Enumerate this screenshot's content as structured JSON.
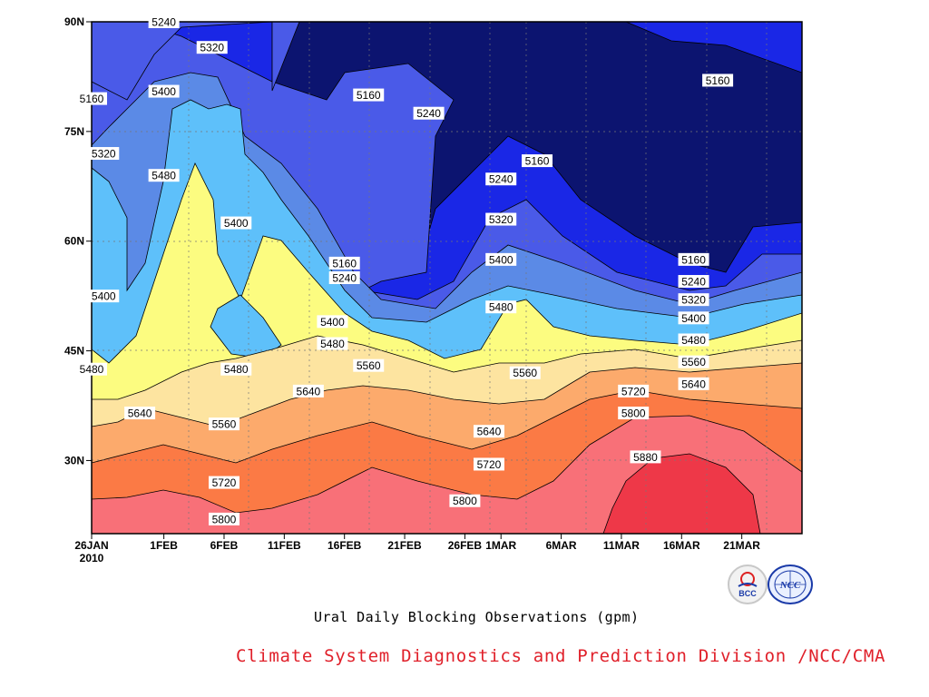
{
  "chart_data": {
    "type": "heatmap",
    "title": "Ural Daily Blocking Observations (gpm)",
    "xlabel": "",
    "ylabel": "",
    "x_ticks": [
      "26JAN",
      "1FEB",
      "6FEB",
      "11FEB",
      "16FEB",
      "21FEB",
      "26FEB",
      "1MAR",
      "6MAR",
      "11MAR",
      "16MAR",
      "21MAR"
    ],
    "x_year": "2010",
    "x_range": [
      "2010-01-26",
      "2010-03-26"
    ],
    "y_ticks": [
      "30N",
      "45N",
      "60N",
      "75N",
      "90N"
    ],
    "y_range": [
      20,
      90
    ],
    "grid": true,
    "contour_levels": [
      5160,
      5240,
      5320,
      5400,
      5480,
      5560,
      5640,
      5720,
      5800,
      5880
    ],
    "band_colors": [
      "#0c1470",
      "#1a27e6",
      "#4a5ae8",
      "#5b8ae6",
      "#5ec0fa",
      "#fcfc80",
      "#fde4a0",
      "#fcaa6c",
      "#fb7a45",
      "#f87078",
      "#ee3848"
    ],
    "contour_labels": [
      {
        "date": "2010-02-01",
        "lat": 90,
        "value": 5240
      },
      {
        "date": "2010-01-26",
        "lat": 79.5,
        "value": 5160
      },
      {
        "date": "2010-02-05",
        "lat": 86.5,
        "value": 5320
      },
      {
        "date": "2010-02-01",
        "lat": 80.5,
        "value": 5400
      },
      {
        "date": "2010-02-18",
        "lat": 80,
        "value": 5160
      },
      {
        "date": "2010-02-23",
        "lat": 77.5,
        "value": 5240
      },
      {
        "date": "2010-03-19",
        "lat": 82,
        "value": 5160
      },
      {
        "date": "2010-01-27",
        "lat": 72,
        "value": 5320
      },
      {
        "date": "2010-02-01",
        "lat": 69,
        "value": 5480
      },
      {
        "date": "2010-02-07",
        "lat": 62.5,
        "value": 5400
      },
      {
        "date": "2010-03-04",
        "lat": 71,
        "value": 5160
      },
      {
        "date": "2010-02-29",
        "lat": 68.5,
        "value": 5240
      },
      {
        "date": "2010-02-29",
        "lat": 63,
        "value": 5320
      },
      {
        "date": "2010-02-29",
        "lat": 57.5,
        "value": 5400
      },
      {
        "date": "2010-02-16",
        "lat": 57,
        "value": 5160
      },
      {
        "date": "2010-02-16",
        "lat": 55,
        "value": 5240
      },
      {
        "date": "2010-01-27",
        "lat": 52.5,
        "value": 5400
      },
      {
        "date": "2010-02-15",
        "lat": 49,
        "value": 5400
      },
      {
        "date": "2010-02-29",
        "lat": 51,
        "value": 5480
      },
      {
        "date": "2010-02-15",
        "lat": 46,
        "value": 5480
      },
      {
        "date": "2010-02-18",
        "lat": 43,
        "value": 5560
      },
      {
        "date": "2010-01-26",
        "lat": 42.5,
        "value": 5480
      },
      {
        "date": "2010-02-07",
        "lat": 42.5,
        "value": 5480
      },
      {
        "date": "2010-03-03",
        "lat": 42,
        "value": 5560
      },
      {
        "date": "2010-02-13",
        "lat": 39.5,
        "value": 5640
      },
      {
        "date": "2010-01-30",
        "lat": 36.5,
        "value": 5640
      },
      {
        "date": "2010-02-06",
        "lat": 35,
        "value": 5560
      },
      {
        "date": "2010-02-28",
        "lat": 34,
        "value": 5640
      },
      {
        "date": "2010-03-12",
        "lat": 39.5,
        "value": 5720
      },
      {
        "date": "2010-03-12",
        "lat": 36.5,
        "value": 5800
      },
      {
        "date": "2010-03-17",
        "lat": 43.5,
        "value": 5560
      },
      {
        "date": "2010-03-17",
        "lat": 40.5,
        "value": 5640
      },
      {
        "date": "2010-03-17",
        "lat": 57.5,
        "value": 5160
      },
      {
        "date": "2010-03-17",
        "lat": 54.5,
        "value": 5240
      },
      {
        "date": "2010-03-17",
        "lat": 52,
        "value": 5320
      },
      {
        "date": "2010-03-17",
        "lat": 49.5,
        "value": 5400
      },
      {
        "date": "2010-03-17",
        "lat": 46.5,
        "value": 5480
      },
      {
        "date": "2010-02-28",
        "lat": 29.5,
        "value": 5720
      },
      {
        "date": "2010-02-06",
        "lat": 27,
        "value": 5720
      },
      {
        "date": "2010-03-13",
        "lat": 30.5,
        "value": 5880
      },
      {
        "date": "2010-02-26",
        "lat": 24.5,
        "value": 5800
      },
      {
        "date": "2010-02-06",
        "lat": 22,
        "value": 5800
      }
    ]
  },
  "caption": "Ural Daily Blocking Observations (gpm)",
  "credit": "Climate System Diagnostics and Prediction Division /NCC/CMA",
  "logos": [
    {
      "name": "BCC",
      "text": "BCC",
      "color": "#1a3aa8"
    },
    {
      "name": "NCC",
      "text": "NCC",
      "color": "#1a3aa8"
    }
  ]
}
